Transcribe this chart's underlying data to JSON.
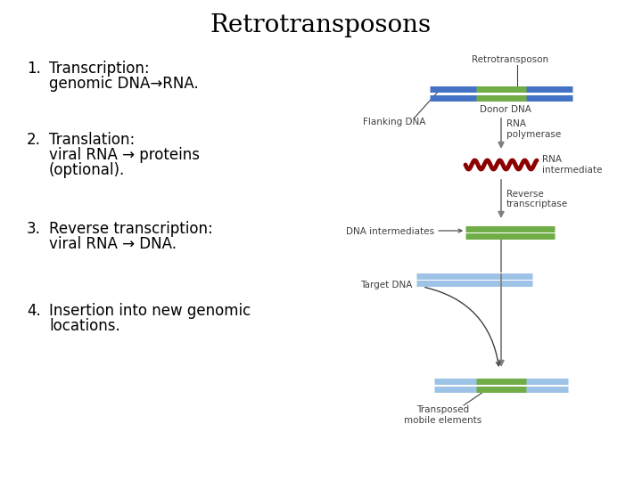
{
  "title": "Retrotransposons",
  "title_fontsize": 20,
  "title_font": "serif",
  "bg_color": "#ffffff",
  "text_color": "#000000",
  "list_items": [
    {
      "num": "1.",
      "lines": [
        "Transcription:",
        "genomic DNA→RNA."
      ]
    },
    {
      "num": "2.",
      "lines": [
        "Translation:",
        "viral RNA → proteins",
        "(optional)."
      ]
    },
    {
      "num": "3.",
      "lines": [
        "Reverse transcription:",
        "viral RNA → DNA."
      ]
    },
    {
      "num": "4.",
      "lines": [
        "Insertion into new genomic",
        "locations."
      ]
    }
  ],
  "diagram": {
    "retrotransposon_label": "Retrotransposon",
    "donor_dna_label": "Donor DNA",
    "flanking_dna_label": "Flanking DNA",
    "rna_polymerase_label": "RNA\npolymerase",
    "rna_intermediate_label": "RNA\nintermediate",
    "reverse_transcriptase_label": "Reverse\ntranscriptase",
    "dna_intermediates_label": "DNA intermediates",
    "target_dna_label": "Target DNA",
    "transposed_label": "Transposed\nmobile elements",
    "blue_color": "#4472c4",
    "green_color": "#70ad47",
    "red_color": "#8b0000",
    "light_blue_color": "#9dc3e6",
    "arrow_color": "#808080",
    "line_color": "#404040",
    "label_fontsize": 7.5
  }
}
